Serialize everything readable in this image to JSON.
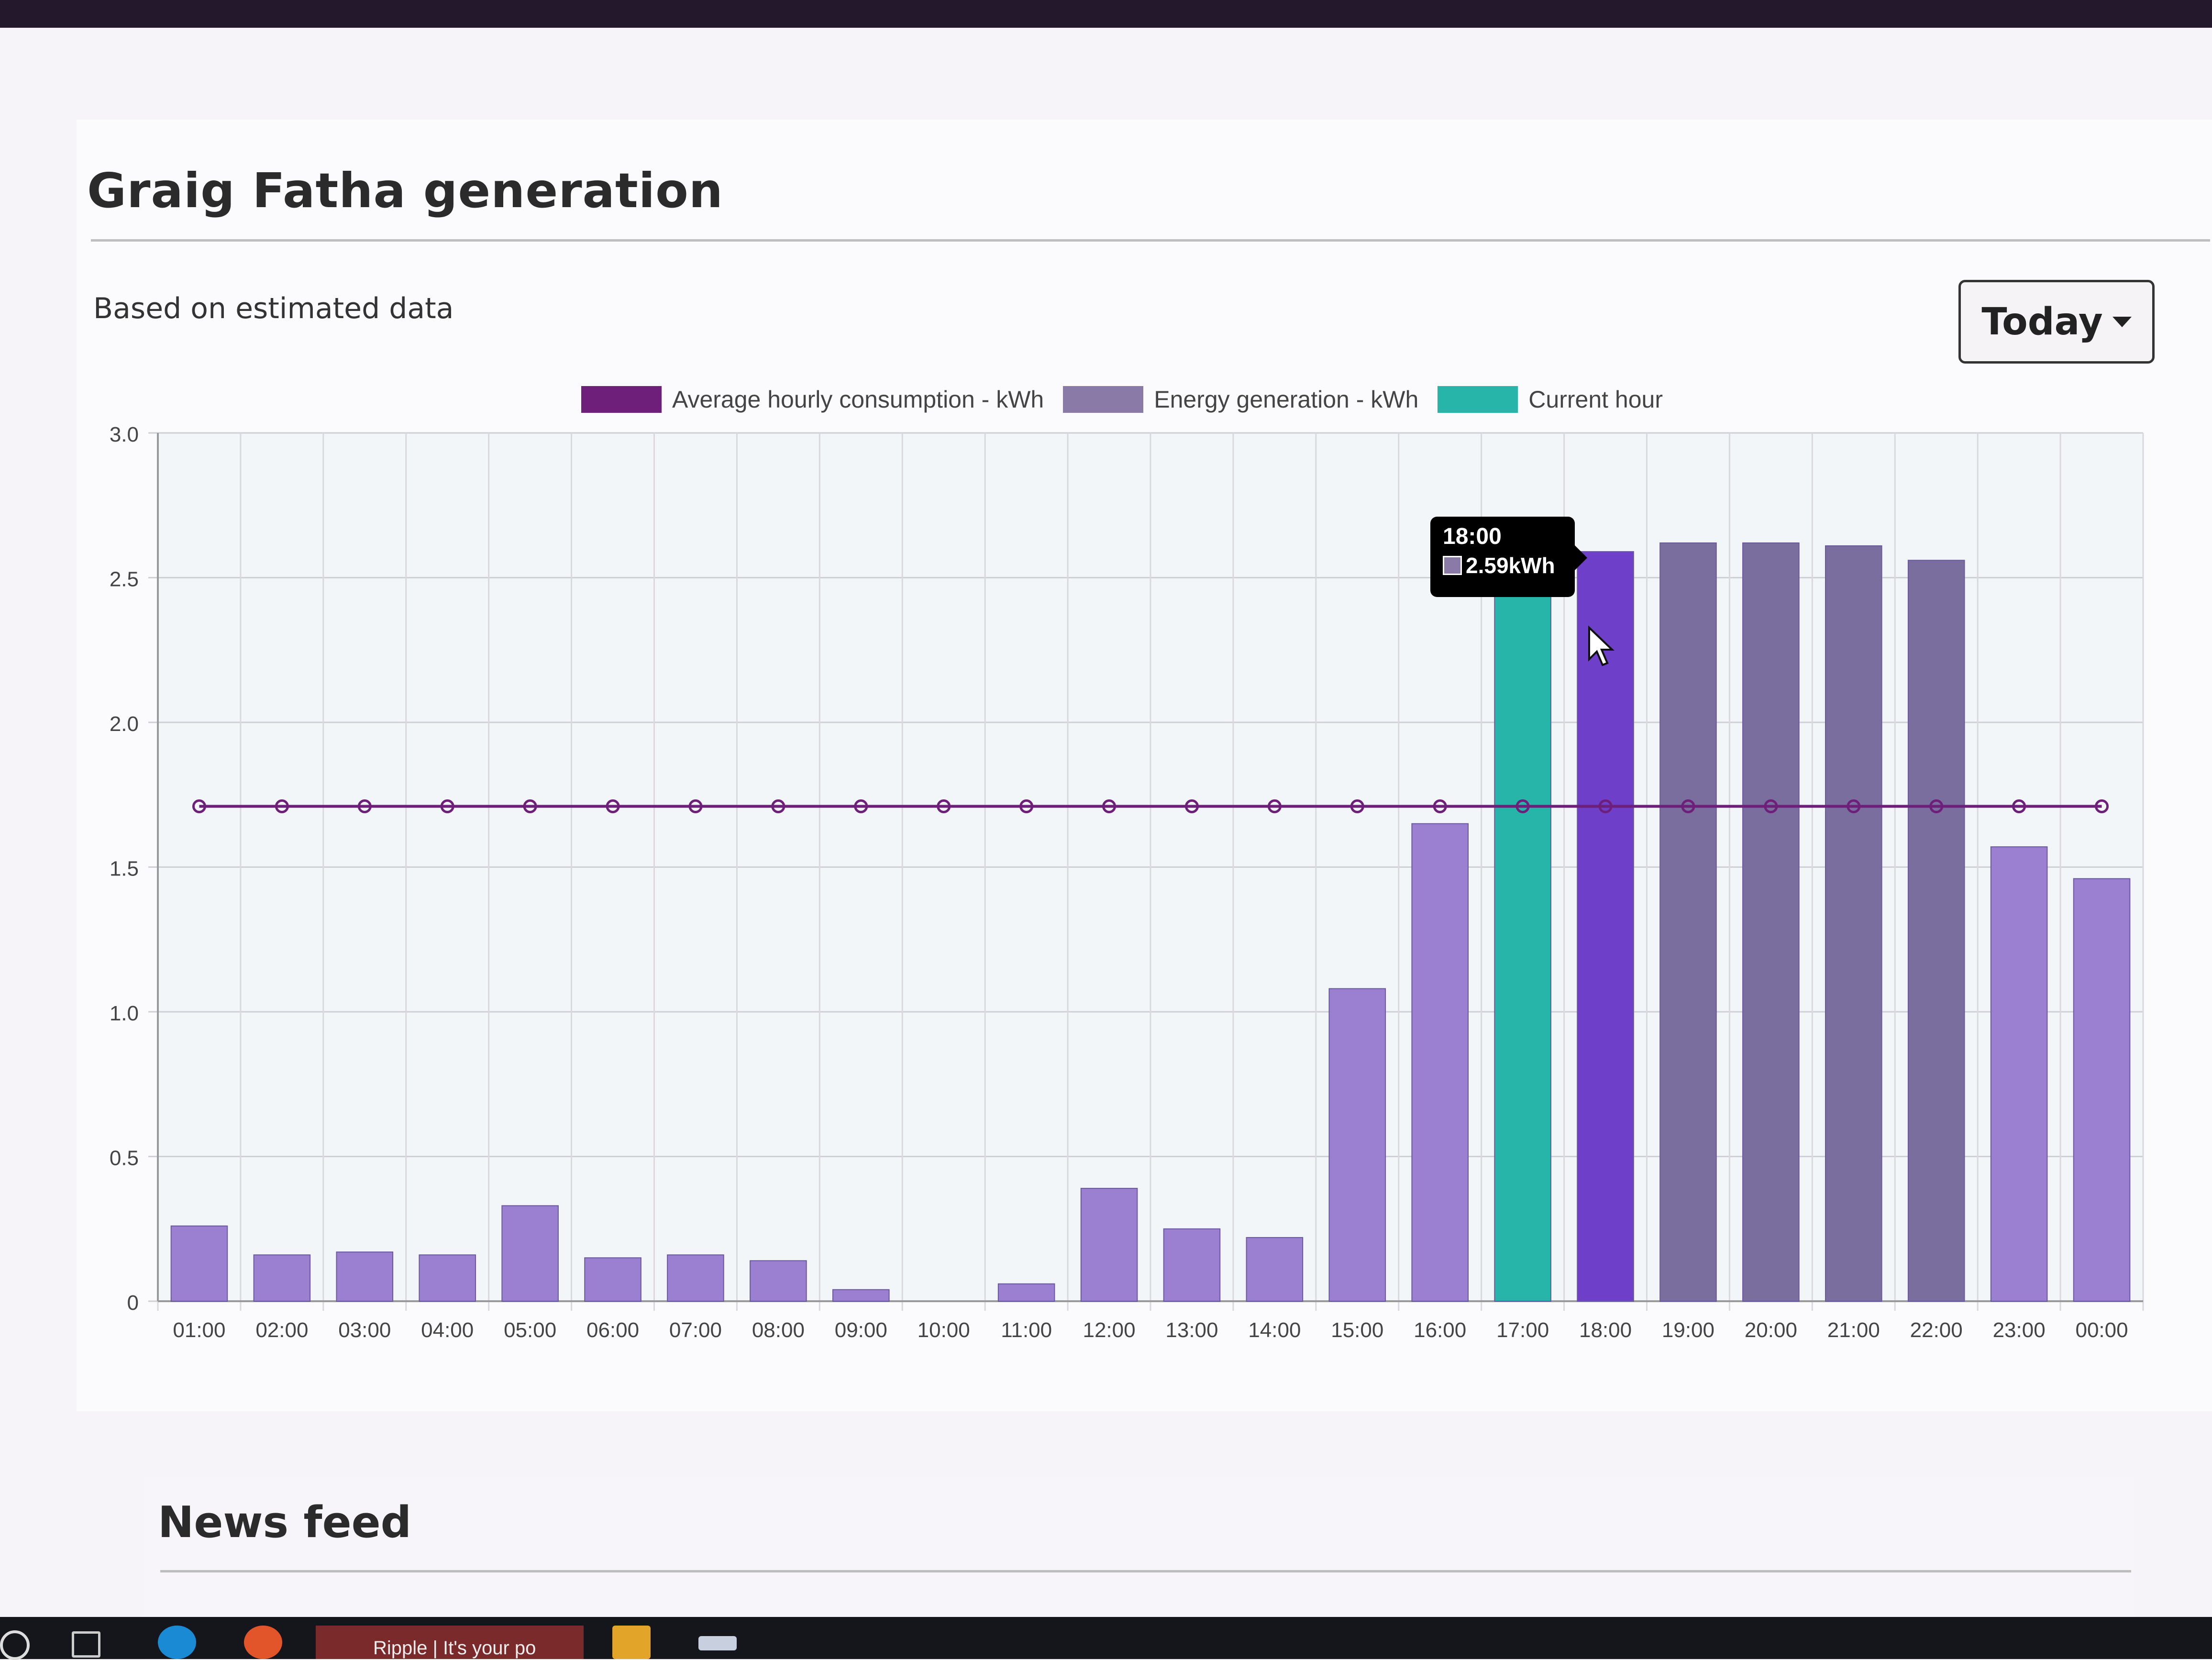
{
  "section": {
    "title": "Graig Fatha generation",
    "subtitle": "Based on estimated data",
    "period_button": "Today"
  },
  "legend": [
    {
      "label": "Average hourly consumption - kWh",
      "color": "#6e1f7a"
    },
    {
      "label": "Energy generation - kWh",
      "color": "#8a7aa8"
    },
    {
      "label": "Current hour",
      "color": "#26b5a8"
    }
  ],
  "tooltip": {
    "title": "18:00",
    "value": "2.59kWh"
  },
  "chart_data": {
    "type": "bar",
    "categories": [
      "01:00",
      "02:00",
      "03:00",
      "04:00",
      "05:00",
      "06:00",
      "07:00",
      "08:00",
      "09:00",
      "10:00",
      "11:00",
      "12:00",
      "13:00",
      "14:00",
      "15:00",
      "16:00",
      "17:00",
      "18:00",
      "19:00",
      "20:00",
      "21:00",
      "22:00",
      "23:00",
      "00:00"
    ],
    "series": [
      {
        "name": "Energy generation - kWh",
        "kind": "bar",
        "values": [
          0.26,
          0.16,
          0.17,
          0.16,
          0.33,
          0.15,
          0.16,
          0.14,
          0.04,
          0.0,
          0.06,
          0.39,
          0.25,
          0.22,
          1.08,
          1.65,
          2.52,
          2.59,
          2.62,
          2.62,
          2.61,
          2.56,
          1.57,
          1.46
        ]
      },
      {
        "name": "Average hourly consumption - kWh",
        "kind": "line",
        "values": [
          1.71,
          1.71,
          1.71,
          1.71,
          1.71,
          1.71,
          1.71,
          1.71,
          1.71,
          1.71,
          1.71,
          1.71,
          1.71,
          1.71,
          1.71,
          1.71,
          1.71,
          1.71,
          1.71,
          1.71,
          1.71,
          1.71,
          1.71,
          1.71
        ]
      }
    ],
    "current_hour": "17:00",
    "highlighted": "18:00",
    "ylim": [
      0,
      3.0
    ],
    "yticks": [
      "0",
      "0.5",
      "1.0",
      "1.5",
      "2.0",
      "2.5",
      "3.0"
    ],
    "grid": true,
    "legend_position": "top",
    "colors": {
      "bar": "#9b7fd0",
      "bar_dark": "#7a6e9e",
      "current": "#26b5a8",
      "hover": "#6e3fc8",
      "line": "#6e1f7a"
    }
  },
  "news": {
    "title": "News feed"
  },
  "taskbar": {
    "tab_label": "Ripple | It's your po"
  }
}
